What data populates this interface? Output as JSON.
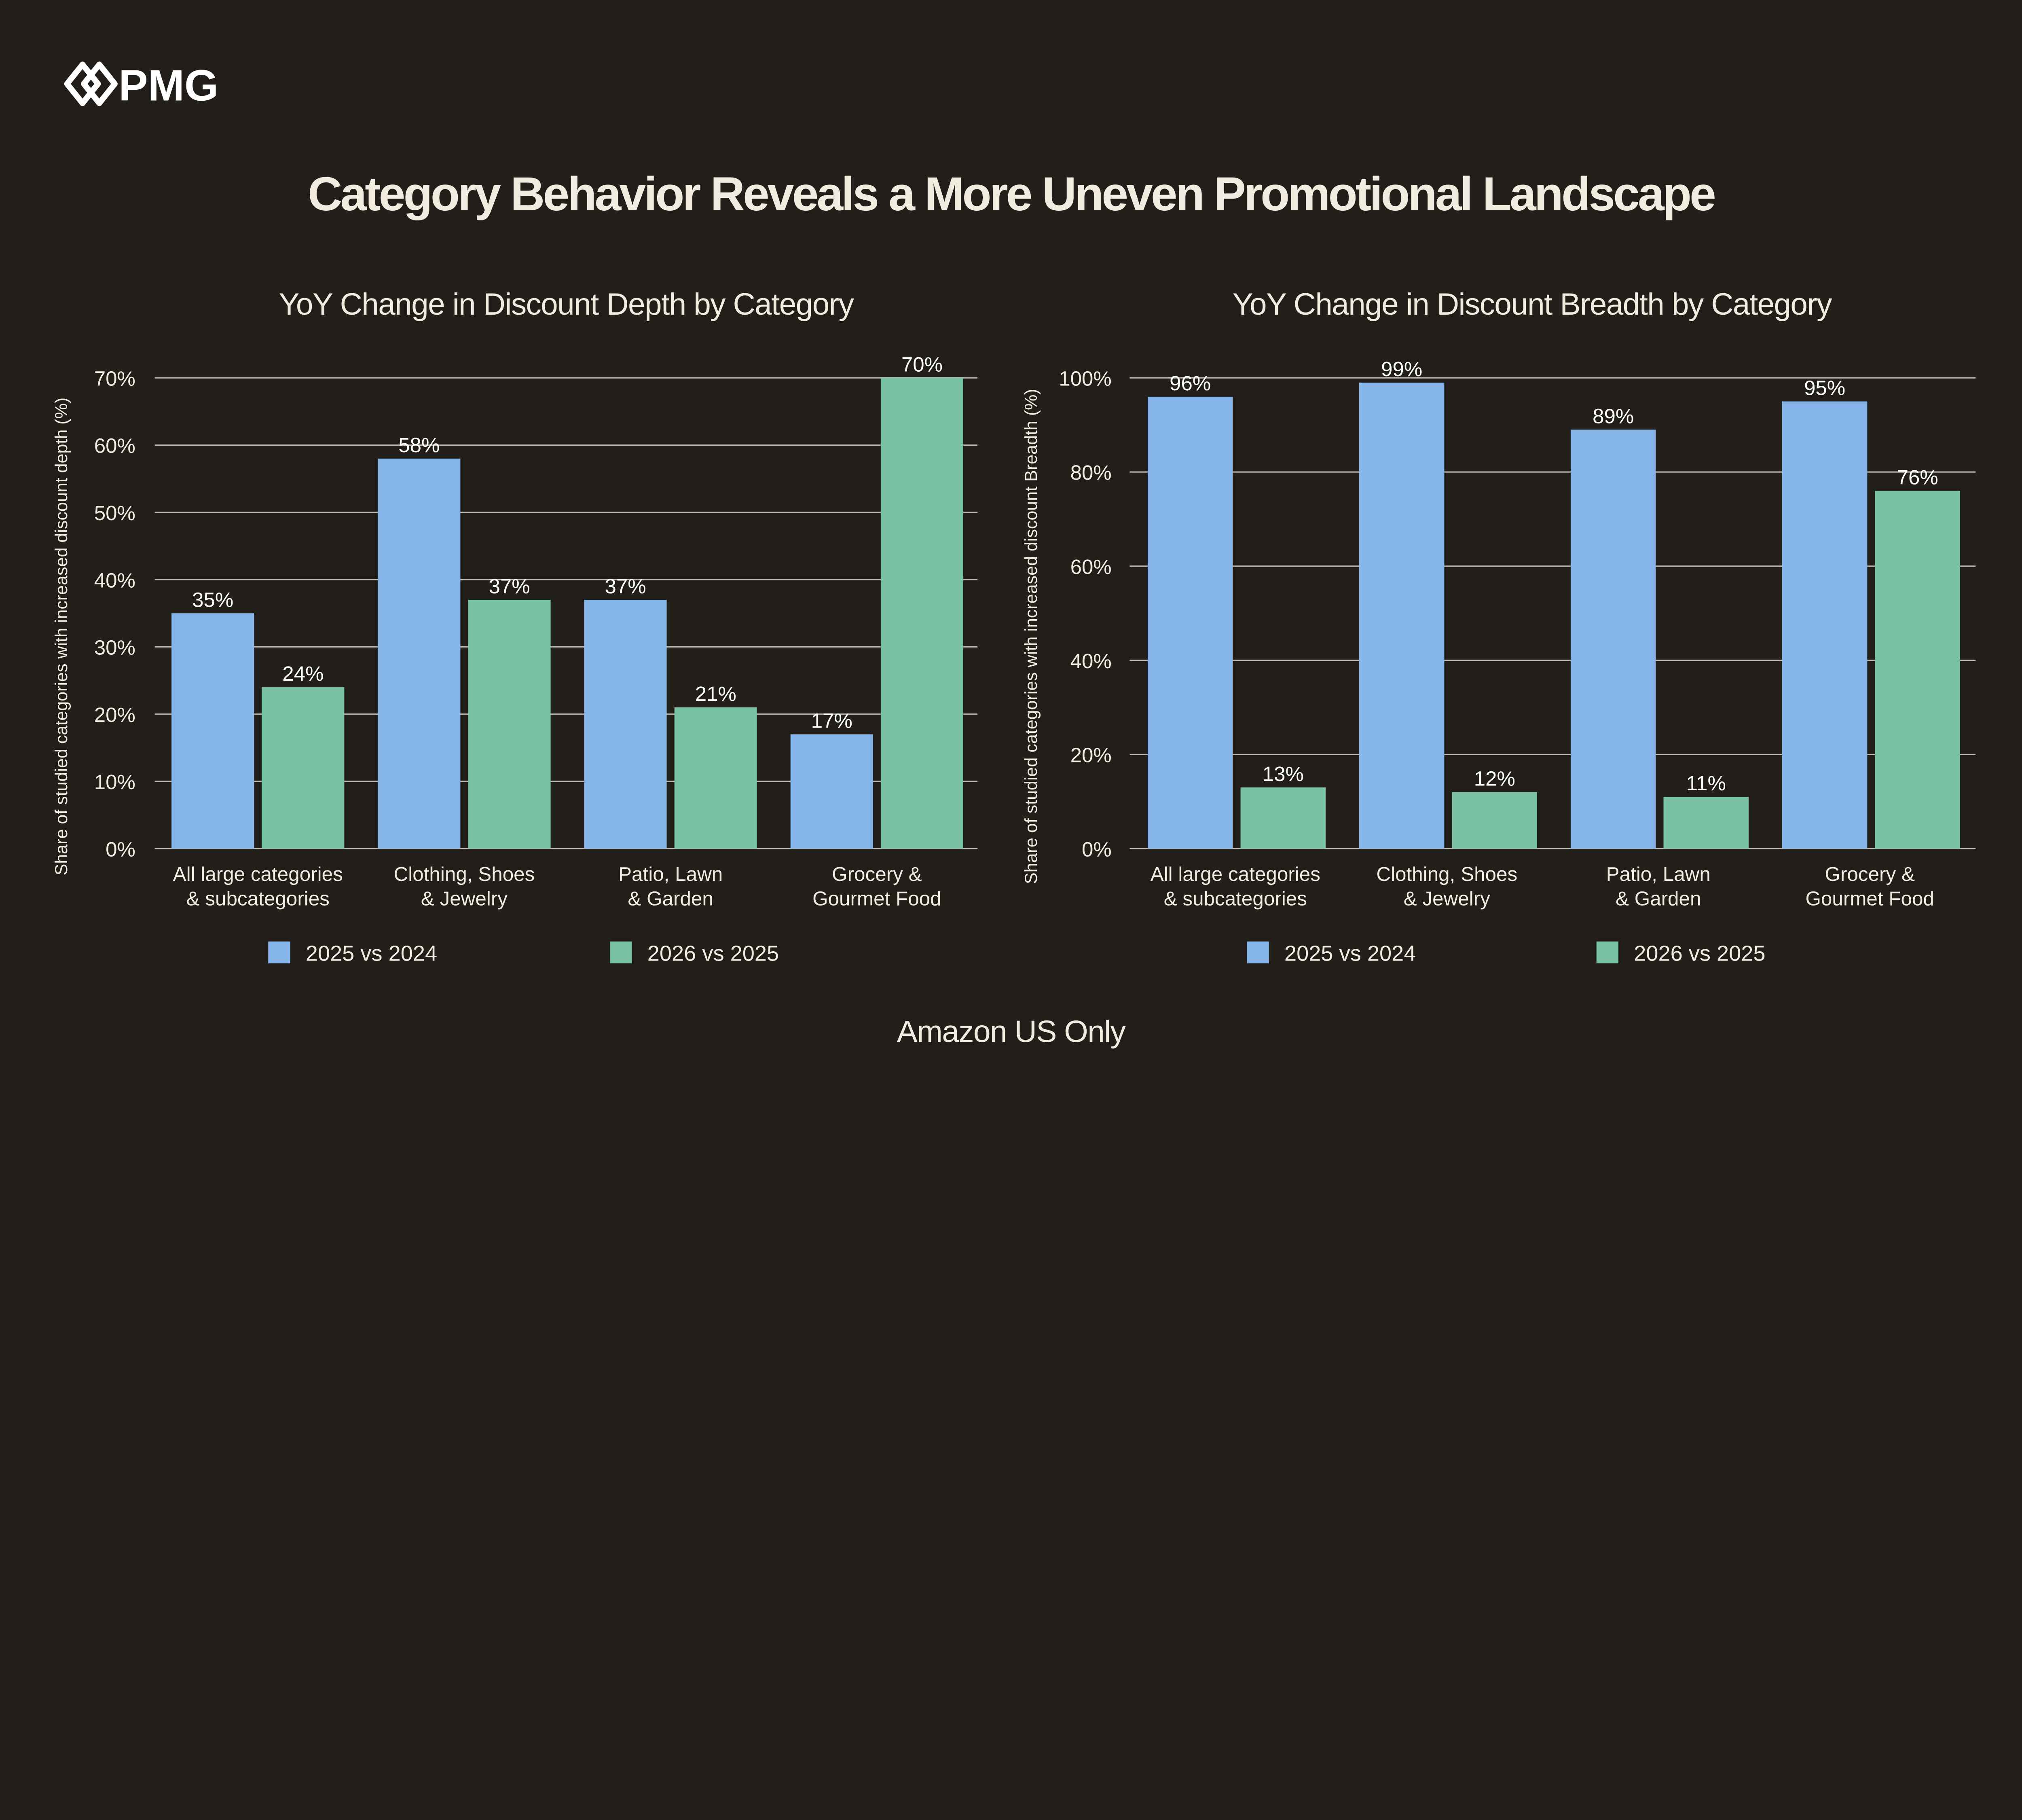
{
  "brand": {
    "logo_text": "PMG"
  },
  "title": "Category Behavior Reveals a More Uneven Promotional Landscape",
  "footer": "Amazon US Only",
  "colors": {
    "background": "#221f1a",
    "series_2025_vs_2024": "#84b4e8",
    "series_2026_vs_2025": "#7ac2a6",
    "grid": "#bdbab3"
  },
  "chart_data": [
    {
      "type": "bar",
      "title": "YoY Change in Discount Depth by Category",
      "ylabel": "Share of studied categories with increased discount depth (%)",
      "xlabel": "",
      "categories": [
        [
          "All large categories",
          "& subcategories"
        ],
        [
          "Clothing, Shoes",
          "& Jewelry"
        ],
        [
          "Patio, Lawn",
          "& Garden"
        ],
        [
          "Grocery &",
          "Gourmet Food"
        ]
      ],
      "ylim": [
        0,
        70
      ],
      "yticks": [
        0,
        10,
        20,
        30,
        40,
        50,
        60,
        70
      ],
      "tick_labels": [
        "0%",
        "10%",
        "20%",
        "30%",
        "40%",
        "50%",
        "60%",
        "70%"
      ],
      "grid": true,
      "legend": "bottom",
      "series": [
        {
          "name": "2025 vs 2024",
          "color": "#84b4e8",
          "values": [
            35,
            58,
            37,
            17
          ],
          "labels": [
            "35%",
            "58%",
            "37%",
            "17%"
          ]
        },
        {
          "name": "2026 vs 2025",
          "color": "#7ac2a6",
          "values": [
            24,
            37,
            21,
            70
          ],
          "labels": [
            "24%",
            "37%",
            "21%",
            "70%"
          ]
        }
      ]
    },
    {
      "type": "bar",
      "title": "YoY Change in Discount Breadth by Category",
      "ylabel": "Share of studied categories with increased discount Breadth (%)",
      "xlabel": "",
      "categories": [
        [
          "All large categories",
          "& subcategories"
        ],
        [
          "Clothing, Shoes",
          "& Jewelry"
        ],
        [
          "Patio, Lawn",
          "& Garden"
        ],
        [
          "Grocery &",
          "Gourmet Food"
        ]
      ],
      "ylim": [
        0,
        100
      ],
      "yticks": [
        0,
        20,
        40,
        60,
        80,
        100
      ],
      "tick_labels": [
        "0%",
        "20%",
        "40%",
        "60%",
        "80%",
        "100%"
      ],
      "grid": true,
      "legend": "bottom",
      "series": [
        {
          "name": "2025 vs 2024",
          "color": "#84b4e8",
          "values": [
            96,
            99,
            89,
            95
          ],
          "labels": [
            "96%",
            "99%",
            "89%",
            "95%"
          ]
        },
        {
          "name": "2026 vs 2025",
          "color": "#7ac2a6",
          "values": [
            13,
            12,
            11,
            76
          ],
          "labels": [
            "13%",
            "12%",
            "11%",
            "76%"
          ]
        }
      ]
    }
  ]
}
